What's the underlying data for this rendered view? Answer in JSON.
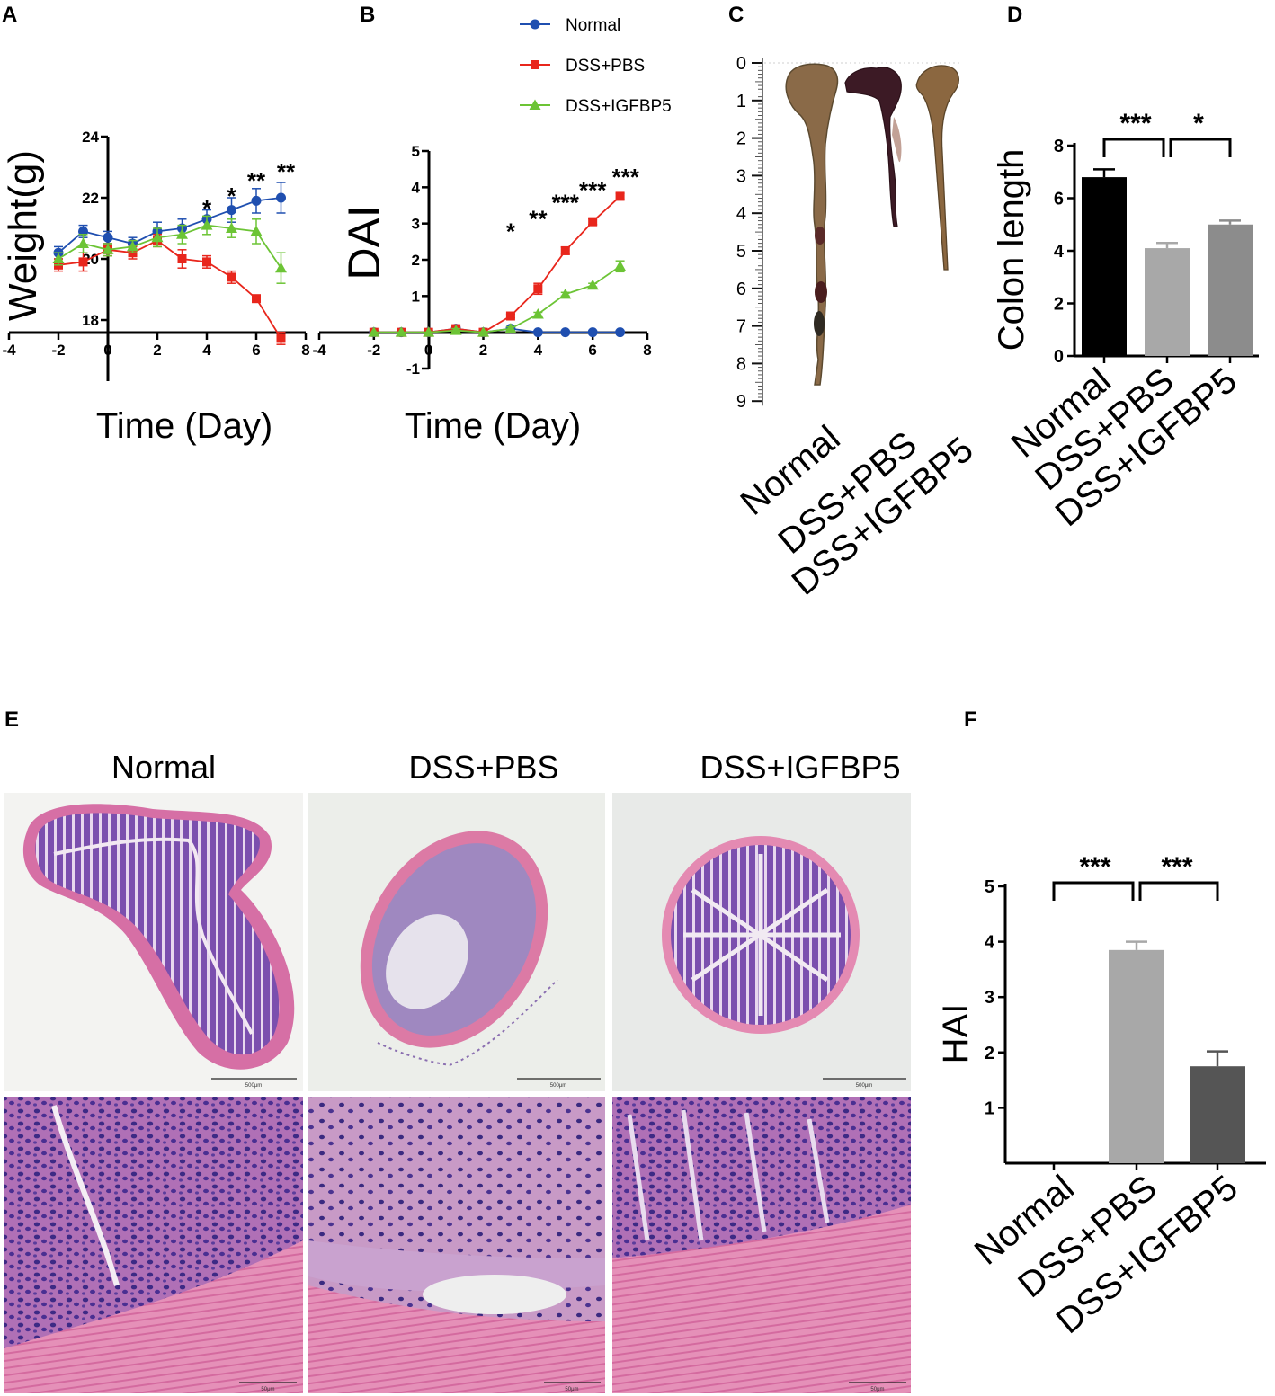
{
  "panels": {
    "A": "A",
    "B": "B",
    "C": "C",
    "D": "D",
    "E": "E",
    "F": "F"
  },
  "colors": {
    "normal": "#1f4fb0",
    "dss_pbs": "#e8261c",
    "dss_igfbp5": "#6cc435",
    "bar_normal": "#000000",
    "bar_pbs": "#a8a8a8",
    "bar_igfbp5": "#8c8c8c",
    "bar_f_igfbp5": "#555555"
  },
  "legend": {
    "items": [
      {
        "name": "Normal",
        "color": "#1f4fb0",
        "marker": "circle"
      },
      {
        "name": "DSS+PBS",
        "color": "#e8261c",
        "marker": "square"
      },
      {
        "name": "DSS+IGFBP5",
        "color": "#6cc435",
        "marker": "triangle"
      }
    ]
  },
  "chart_data": [
    {
      "id": "A",
      "type": "line",
      "xlabel": "Time (Day)",
      "ylabel": "Weight(g)",
      "xlim": [
        -4,
        8
      ],
      "ylim": [
        16,
        24
      ],
      "xticks": [
        "-4",
        "-2",
        "0",
        "2",
        "4",
        "6",
        "8"
      ],
      "yticks": [
        "18",
        "20",
        "22",
        "24"
      ],
      "x": [
        -2,
        -1,
        0,
        1,
        2,
        3,
        4,
        5,
        6,
        7
      ],
      "series": [
        {
          "name": "Normal",
          "values": [
            20.2,
            20.9,
            20.7,
            20.5,
            20.9,
            21.0,
            21.3,
            21.6,
            21.9,
            22.0
          ],
          "err": [
            0.2,
            0.2,
            0.2,
            0.2,
            0.3,
            0.3,
            0.3,
            0.4,
            0.4,
            0.5
          ]
        },
        {
          "name": "DSS+PBS",
          "values": [
            19.8,
            19.9,
            20.3,
            20.2,
            20.6,
            20.0,
            19.9,
            19.4,
            18.7,
            17.4
          ],
          "err": [
            0.2,
            0.3,
            0.2,
            0.2,
            0.2,
            0.3,
            0.2,
            0.2,
            0.1,
            0.2
          ]
        },
        {
          "name": "DSS+IGFBP5",
          "values": [
            20.0,
            20.5,
            20.3,
            20.4,
            20.7,
            20.8,
            21.1,
            21.0,
            20.9,
            19.7
          ],
          "err": [
            0.2,
            0.3,
            0.2,
            0.2,
            0.3,
            0.3,
            0.3,
            0.3,
            0.4,
            0.5
          ]
        }
      ],
      "annotations": [
        {
          "text": "*",
          "x": 4,
          "y": 21.8
        },
        {
          "text": "*",
          "x": 5,
          "y": 22.2
        },
        {
          "text": "**",
          "x": 6,
          "y": 22.7
        },
        {
          "text": "**",
          "x": 7.2,
          "y": 23.0
        }
      ]
    },
    {
      "id": "B",
      "type": "line",
      "xlabel": "Time (Day)",
      "ylabel": "DAI",
      "xlim": [
        -4,
        8
      ],
      "ylim": [
        -1,
        5
      ],
      "xticks": [
        "-4",
        "-2",
        "0",
        "2",
        "4",
        "6",
        "8"
      ],
      "yticks": [
        "-1",
        "1",
        "2",
        "3",
        "4",
        "5"
      ],
      "x": [
        -2,
        -1,
        0,
        1,
        2,
        3,
        4,
        5,
        6,
        7
      ],
      "series": [
        {
          "name": "Normal",
          "values": [
            0,
            0,
            0,
            0.1,
            0,
            0.1,
            0,
            0,
            0,
            0
          ],
          "err": [
            0,
            0,
            0,
            0.05,
            0,
            0.05,
            0,
            0,
            0,
            0
          ]
        },
        {
          "name": "DSS+PBS",
          "values": [
            0,
            0,
            0,
            0.1,
            0,
            0.45,
            1.2,
            2.25,
            3.05,
            3.75
          ],
          "err": [
            0,
            0,
            0,
            0.05,
            0,
            0.05,
            0.15,
            0.1,
            0.08,
            0.08
          ]
        },
        {
          "name": "DSS+IGFBP5",
          "values": [
            0,
            0,
            0,
            0.05,
            0,
            0.1,
            0.5,
            1.05,
            1.3,
            1.82
          ],
          "err": [
            0,
            0,
            0,
            0.05,
            0,
            0.05,
            0.05,
            0.05,
            0.05,
            0.15
          ]
        }
      ],
      "annotations": [
        {
          "text": "*",
          "x": 3,
          "y": 2.9
        },
        {
          "text": "**",
          "x": 4,
          "y": 3.25
        },
        {
          "text": "***",
          "x": 5,
          "y": 3.7
        },
        {
          "text": "***",
          "x": 6,
          "y": 4.05
        },
        {
          "text": "***",
          "x": 7.2,
          "y": 4.4
        }
      ]
    },
    {
      "id": "D",
      "type": "bar",
      "ylabel": "Colon length",
      "categories": [
        "Normal",
        "DSS+PBS",
        "DSS+IGFBP5"
      ],
      "values": [
        6.8,
        4.1,
        5.0
      ],
      "err": [
        0.3,
        0.2,
        0.15
      ],
      "ylim": [
        0,
        8
      ],
      "yticks": [
        "0",
        "2",
        "4",
        "6",
        "8"
      ],
      "significance": [
        {
          "pair": [
            0,
            1
          ],
          "label": "***"
        },
        {
          "pair": [
            1,
            2
          ],
          "label": "*"
        }
      ]
    },
    {
      "id": "F",
      "type": "bar",
      "ylabel": "HAI",
      "categories": [
        "Normal",
        "DSS+PBS",
        "DSS+IGFBP5"
      ],
      "values": [
        0,
        3.85,
        1.75
      ],
      "err": [
        0,
        0.15,
        0.27
      ],
      "ylim": [
        0,
        5
      ],
      "yticks": [
        "1",
        "2",
        "3",
        "4",
        "5"
      ],
      "significance": [
        {
          "pair": [
            0,
            1
          ],
          "label": "***"
        },
        {
          "pair": [
            1,
            2
          ],
          "label": "***"
        }
      ]
    }
  ],
  "colon_photo": {
    "ruler_ticks": [
      "0",
      "1",
      "2",
      "3",
      "4",
      "5",
      "6",
      "7",
      "8",
      "9"
    ],
    "labels": [
      "Normal",
      "DSS+PBS",
      "DSS+IGFBP5"
    ]
  },
  "histology": {
    "titles": [
      "Normal",
      "DSS+PBS",
      "DSS+IGFBP5"
    ],
    "scale_top": "500μm",
    "scale_bottom": "50μm"
  }
}
